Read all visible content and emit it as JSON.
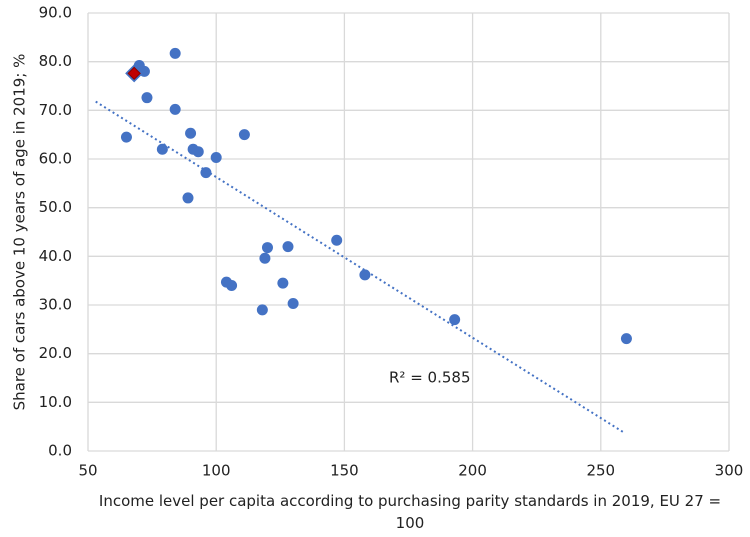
{
  "chart_data": {
    "type": "scatter",
    "xlabel": "Income level per capita according to purchasing parity standards in 2019, EU 27 = 100",
    "ylabel": "Share of cars above 10 years of age in 2019; %",
    "annotation": "R² = 0.585",
    "xlim": [
      50,
      300
    ],
    "xticks": [
      50,
      100,
      150,
      200,
      250,
      300
    ],
    "ylim": [
      0,
      90
    ],
    "yticks": [
      {
        "value": 0,
        "label": "0.0"
      },
      {
        "value": 10,
        "label": "10.0"
      },
      {
        "value": 20,
        "label": "20.0"
      },
      {
        "value": 30,
        "label": "30.0"
      },
      {
        "value": 40,
        "label": "40.0"
      },
      {
        "value": 50,
        "label": "50.0"
      },
      {
        "value": 60,
        "label": "60.0"
      },
      {
        "value": 70,
        "label": "70.0"
      },
      {
        "value": 80,
        "label": "80.0"
      },
      {
        "value": 90,
        "label": "90.0"
      }
    ],
    "grid": true,
    "series": [
      {
        "color": "#4472c4",
        "marker": "circle",
        "x": [
          65,
          70,
          72,
          73,
          79,
          84,
          84,
          89,
          90,
          91,
          93,
          96,
          100,
          111,
          104,
          106,
          118,
          119,
          120,
          126,
          128,
          130,
          147,
          158,
          193,
          260
        ],
        "values": [
          64.5,
          79.2,
          78,
          72.6,
          62,
          81.7,
          70.2,
          52,
          65.3,
          62,
          61.5,
          57.2,
          60.3,
          65,
          34.7,
          34,
          29,
          39.6,
          41.8,
          34.5,
          42,
          30.3,
          43.3,
          36.2,
          27,
          23.1
        ]
      },
      {
        "color": "#c00000",
        "marker": "diamond",
        "x": [
          68
        ],
        "values": [
          77.6
        ]
      }
    ],
    "trendline": {
      "color": "#4472c4",
      "x": [
        53,
        259
      ],
      "values": [
        71.8,
        3.8
      ]
    }
  }
}
